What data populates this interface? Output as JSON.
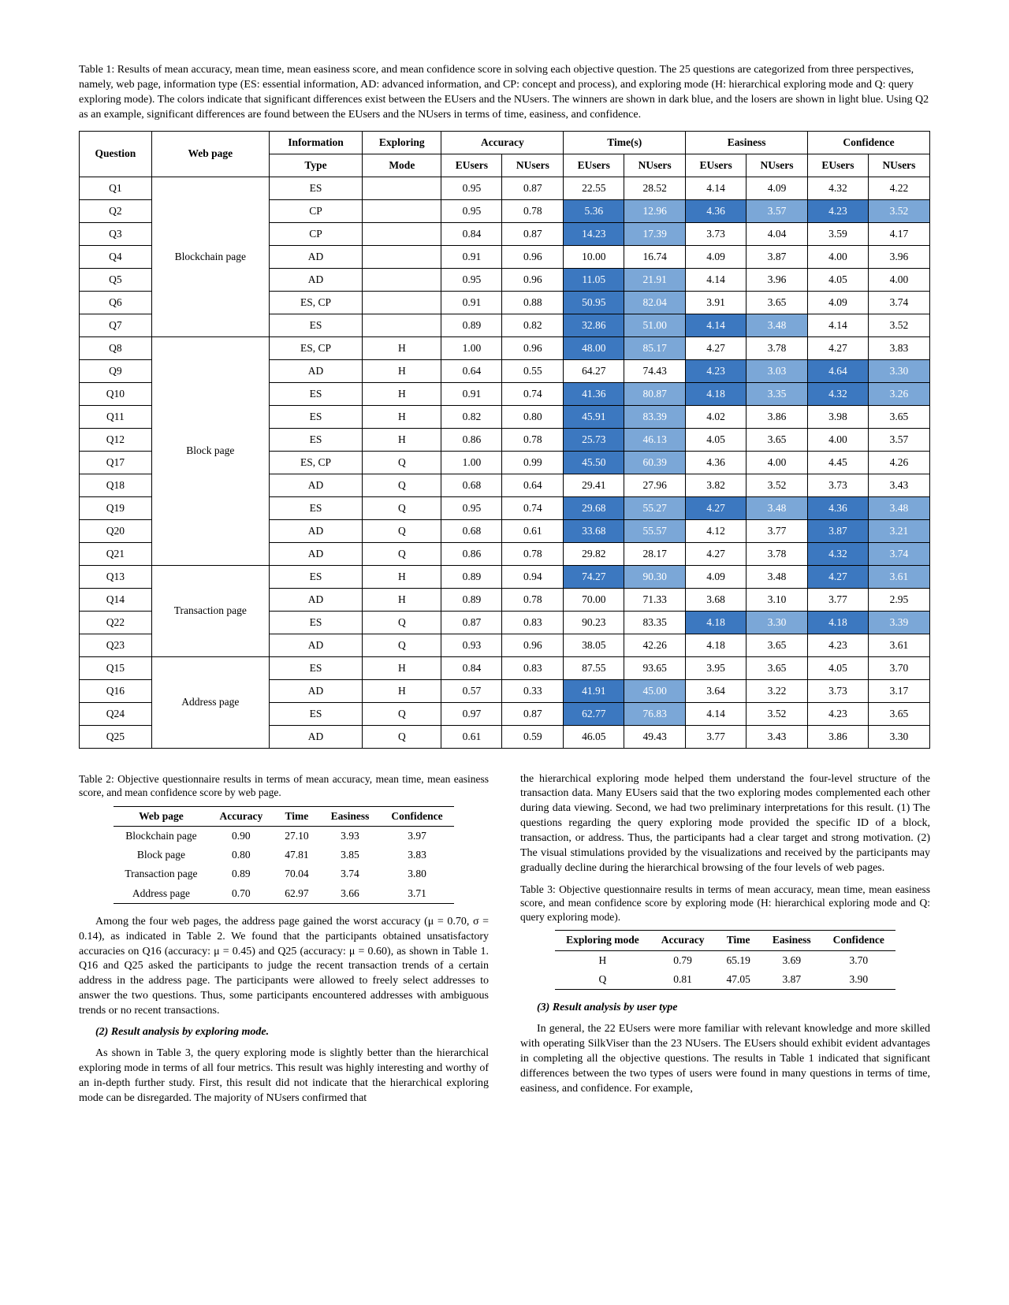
{
  "table1": {
    "caption": "Table 1: Results of mean accuracy, mean time, mean easiness score, and mean confidence score in solving each objective question. The 25 questions are categorized from three perspectives, namely, web page, information type (ES: essential information, AD: advanced information, and CP: concept and process), and exploring mode (H: hierarchical exploring mode and Q: query exploring mode). The colors indicate that significant differences exist between the EUsers and the NUsers. The winners are shown in dark blue, and the losers are shown in light blue. Using Q2 as an example, significant differences are found between the EUsers and the NUsers in terms of time, easiness, and confidence.",
    "headers": {
      "question": "Question",
      "webpage": "Web page",
      "info": "Information",
      "type": "Type",
      "exploring": "Exploring",
      "mode": "Mode",
      "accuracy": "Accuracy",
      "time": "Time(s)",
      "easiness": "Easiness",
      "confidence": "Confidence",
      "eusers": "EUsers",
      "nusers": "NUsers"
    },
    "pages": {
      "blockchain": "Blockchain page",
      "block": "Block page",
      "transaction": "Transaction page",
      "address": "Address page"
    },
    "rows": [
      {
        "q": "Q1",
        "page": "blockchain",
        "ps": 7,
        "info": "ES",
        "mode": "",
        "ae": "0.95",
        "an": "0.87",
        "te": "22.55",
        "tn": "28.52",
        "ee": "4.14",
        "en": "4.09",
        "ce": "4.32",
        "cn": "4.22"
      },
      {
        "q": "Q2",
        "info": "CP",
        "mode": "",
        "ae": "0.95",
        "an": "0.78",
        "te": "5.36",
        "tec": "d",
        "tn": "12.96",
        "tnc": "l",
        "ee": "4.36",
        "eec": "d",
        "en": "3.57",
        "enc": "l",
        "ce": "4.23",
        "cec": "d",
        "cn": "3.52",
        "cnc": "l"
      },
      {
        "q": "Q3",
        "info": "CP",
        "mode": "",
        "ae": "0.84",
        "an": "0.87",
        "te": "14.23",
        "tec": "d",
        "tn": "17.39",
        "tnc": "l",
        "ee": "3.73",
        "en": "4.04",
        "ce": "3.59",
        "cn": "4.17"
      },
      {
        "q": "Q4",
        "info": "AD",
        "mode": "",
        "ae": "0.91",
        "an": "0.96",
        "te": "10.00",
        "tn": "16.74",
        "ee": "4.09",
        "en": "3.87",
        "ce": "4.00",
        "cn": "3.96"
      },
      {
        "q": "Q5",
        "info": "AD",
        "mode": "",
        "ae": "0.95",
        "an": "0.96",
        "te": "11.05",
        "tec": "d",
        "tn": "21.91",
        "tnc": "l",
        "ee": "4.14",
        "en": "3.96",
        "ce": "4.05",
        "cn": "4.00"
      },
      {
        "q": "Q6",
        "info": "ES, CP",
        "mode": "",
        "ae": "0.91",
        "an": "0.88",
        "te": "50.95",
        "tec": "d",
        "tn": "82.04",
        "tnc": "l",
        "ee": "3.91",
        "en": "3.65",
        "ce": "4.09",
        "cn": "3.74"
      },
      {
        "q": "Q7",
        "info": "ES",
        "mode": "",
        "ae": "0.89",
        "an": "0.82",
        "te": "32.86",
        "tec": "d",
        "tn": "51.00",
        "tnc": "l",
        "ee": "4.14",
        "eec": "d",
        "en": "3.48",
        "enc": "l",
        "ce": "4.14",
        "cn": "3.52"
      },
      {
        "q": "Q8",
        "page": "block",
        "ps": 10,
        "info": "ES, CP",
        "mode": "H",
        "ae": "1.00",
        "an": "0.96",
        "te": "48.00",
        "tec": "d",
        "tn": "85.17",
        "tnc": "l",
        "ee": "4.27",
        "en": "3.78",
        "ce": "4.27",
        "cn": "3.83"
      },
      {
        "q": "Q9",
        "info": "AD",
        "mode": "H",
        "ae": "0.64",
        "an": "0.55",
        "te": "64.27",
        "tn": "74.43",
        "ee": "4.23",
        "eec": "d",
        "en": "3.03",
        "enc": "l",
        "ce": "4.64",
        "cec": "d",
        "cn": "3.30",
        "cnc": "l"
      },
      {
        "q": "Q10",
        "info": "ES",
        "mode": "H",
        "ae": "0.91",
        "an": "0.74",
        "te": "41.36",
        "tec": "d",
        "tn": "80.87",
        "tnc": "l",
        "ee": "4.18",
        "eec": "d",
        "en": "3.35",
        "enc": "l",
        "ce": "4.32",
        "cec": "d",
        "cn": "3.26",
        "cnc": "l"
      },
      {
        "q": "Q11",
        "info": "ES",
        "mode": "H",
        "ae": "0.82",
        "an": "0.80",
        "te": "45.91",
        "tec": "d",
        "tn": "83.39",
        "tnc": "l",
        "ee": "4.02",
        "en": "3.86",
        "ce": "3.98",
        "cn": "3.65"
      },
      {
        "q": "Q12",
        "info": "ES",
        "mode": "H",
        "ae": "0.86",
        "an": "0.78",
        "te": "25.73",
        "tec": "d",
        "tn": "46.13",
        "tnc": "l",
        "ee": "4.05",
        "en": "3.65",
        "ce": "4.00",
        "cn": "3.57"
      },
      {
        "q": "Q17",
        "info": "ES, CP",
        "mode": "Q",
        "ae": "1.00",
        "an": "0.99",
        "te": "45.50",
        "tec": "d",
        "tn": "60.39",
        "tnc": "l",
        "ee": "4.36",
        "en": "4.00",
        "ce": "4.45",
        "cn": "4.26"
      },
      {
        "q": "Q18",
        "info": "AD",
        "mode": "Q",
        "ae": "0.68",
        "an": "0.64",
        "te": "29.41",
        "tn": "27.96",
        "ee": "3.82",
        "en": "3.52",
        "ce": "3.73",
        "cn": "3.43"
      },
      {
        "q": "Q19",
        "info": "ES",
        "mode": "Q",
        "ae": "0.95",
        "an": "0.74",
        "te": "29.68",
        "tec": "d",
        "tn": "55.27",
        "tnc": "l",
        "ee": "4.27",
        "eec": "d",
        "en": "3.48",
        "enc": "l",
        "ce": "4.36",
        "cec": "d",
        "cn": "3.48",
        "cnc": "l"
      },
      {
        "q": "Q20",
        "info": "AD",
        "mode": "Q",
        "ae": "0.68",
        "an": "0.61",
        "te": "33.68",
        "tec": "d",
        "tn": "55.57",
        "tnc": "l",
        "ee": "4.12",
        "en": "3.77",
        "ce": "3.87",
        "cec": "d",
        "cn": "3.21",
        "cnc": "l"
      },
      {
        "q": "Q21",
        "info": "AD",
        "mode": "Q",
        "ae": "0.86",
        "an": "0.78",
        "te": "29.82",
        "tn": "28.17",
        "ee": "4.27",
        "en": "3.78",
        "ce": "4.32",
        "cec": "d",
        "cn": "3.74",
        "cnc": "l"
      },
      {
        "q": "Q13",
        "page": "transaction",
        "ps": 4,
        "info": "ES",
        "mode": "H",
        "ae": "0.89",
        "an": "0.94",
        "te": "74.27",
        "tec": "d",
        "tn": "90.30",
        "tnc": "l",
        "ee": "4.09",
        "en": "3.48",
        "ce": "4.27",
        "cec": "d",
        "cn": "3.61",
        "cnc": "l"
      },
      {
        "q": "Q14",
        "info": "AD",
        "mode": "H",
        "ae": "0.89",
        "an": "0.78",
        "te": "70.00",
        "tn": "71.33",
        "ee": "3.68",
        "en": "3.10",
        "ce": "3.77",
        "cn": "2.95"
      },
      {
        "q": "Q22",
        "info": "ES",
        "mode": "Q",
        "ae": "0.87",
        "an": "0.83",
        "te": "90.23",
        "tn": "83.35",
        "ee": "4.18",
        "eec": "d",
        "en": "3.30",
        "enc": "l",
        "ce": "4.18",
        "cec": "d",
        "cn": "3.39",
        "cnc": "l"
      },
      {
        "q": "Q23",
        "info": "AD",
        "mode": "Q",
        "ae": "0.93",
        "an": "0.96",
        "te": "38.05",
        "tn": "42.26",
        "ee": "4.18",
        "en": "3.65",
        "ce": "4.23",
        "cn": "3.61"
      },
      {
        "q": "Q15",
        "page": "address",
        "ps": 4,
        "info": "ES",
        "mode": "H",
        "ae": "0.84",
        "an": "0.83",
        "te": "87.55",
        "tn": "93.65",
        "ee": "3.95",
        "en": "3.65",
        "ce": "4.05",
        "cn": "3.70"
      },
      {
        "q": "Q16",
        "info": "AD",
        "mode": "H",
        "ae": "0.57",
        "an": "0.33",
        "te": "41.91",
        "tec": "d",
        "tn": "45.00",
        "tnc": "l",
        "ee": "3.64",
        "en": "3.22",
        "ce": "3.73",
        "cn": "3.17"
      },
      {
        "q": "Q24",
        "info": "ES",
        "mode": "Q",
        "ae": "0.97",
        "an": "0.87",
        "te": "62.77",
        "tec": "d",
        "tn": "76.83",
        "tnc": "l",
        "ee": "4.14",
        "en": "3.52",
        "ce": "4.23",
        "cn": "3.65"
      },
      {
        "q": "Q25",
        "info": "AD",
        "mode": "Q",
        "ae": "0.61",
        "an": "0.59",
        "te": "46.05",
        "tn": "49.43",
        "ee": "3.77",
        "en": "3.43",
        "ce": "3.86",
        "cn": "3.30"
      }
    ]
  },
  "table2": {
    "caption": "Table 2: Objective questionnaire results in terms of mean accuracy, mean time, mean easiness score, and mean confidence score by web page.",
    "headers": {
      "c1": "Web page",
      "c2": "Accuracy",
      "c3": "Time",
      "c4": "Easiness",
      "c5": "Confidence"
    },
    "rows": [
      {
        "a": "Blockchain page",
        "b": "0.90",
        "c": "27.10",
        "d": "3.93",
        "e": "3.97"
      },
      {
        "a": "Block page",
        "b": "0.80",
        "c": "47.81",
        "d": "3.85",
        "e": "3.83"
      },
      {
        "a": "Transaction page",
        "b": "0.89",
        "c": "70.04",
        "d": "3.74",
        "e": "3.80"
      },
      {
        "a": "Address page",
        "b": "0.70",
        "c": "62.97",
        "d": "3.66",
        "e": "3.71"
      }
    ]
  },
  "table3": {
    "caption": "Table 3: Objective questionnaire results in terms of mean accuracy, mean time, mean easiness score, and mean confidence score by exploring mode (H: hierarchical exploring mode and Q: query exploring mode).",
    "headers": {
      "c1": "Exploring mode",
      "c2": "Accuracy",
      "c3": "Time",
      "c4": "Easiness",
      "c5": "Confidence"
    },
    "rows": [
      {
        "a": "H",
        "b": "0.79",
        "c": "65.19",
        "d": "3.69",
        "e": "3.70"
      },
      {
        "a": "Q",
        "b": "0.81",
        "c": "47.05",
        "d": "3.87",
        "e": "3.90"
      }
    ]
  },
  "text": {
    "p1": "Among the four web pages, the address page gained the worst accuracy (μ = 0.70, σ = 0.14), as indicated in Table 2. We found that the participants obtained unsatisfactory accuracies on Q16 (accuracy: μ = 0.45) and Q25 (accuracy: μ = 0.60), as shown in Table 1. Q16 and Q25 asked the participants to judge the recent transaction trends of a certain address in the address page. The participants were allowed to freely select addresses to answer the two questions. Thus, some participants encountered addresses with ambiguous trends or no recent transactions.",
    "h2": "(2) Result analysis by exploring mode.",
    "p2": "As shown in Table 3, the query exploring mode is slightly better than the hierarchical exploring mode in terms of all four metrics. This result was highly interesting and worthy of an in-depth further study. First, this result did not indicate that the hierarchical exploring mode can be disregarded. The majority of NUsers confirmed that",
    "p3": "the hierarchical exploring mode helped them understand the four-level structure of the transaction data. Many EUsers said that the two exploring modes complemented each other during data viewing. Second, we had two preliminary interpretations for this result. (1) The questions regarding the query exploring mode provided the specific ID of a block, transaction, or address. Thus, the participants had a clear target and strong motivation. (2) The visual stimulations provided by the visualizations and received by the participants may gradually decline during the hierarchical browsing of the four levels of web pages.",
    "h3": "(3) Result analysis by user type",
    "p4": "In general, the 22 EUsers were more familiar with relevant knowledge and more skilled with operating SilkViser than the 23 NUsers. The EUsers should exhibit evident advantages in completing all the objective questions. The results in Table 1 indicated that significant differences between the two types of users were found in many questions in terms of time, easiness, and confidence. For example,"
  },
  "colors": {
    "dark": "#3c78c0",
    "light": "#7ba7d7"
  }
}
